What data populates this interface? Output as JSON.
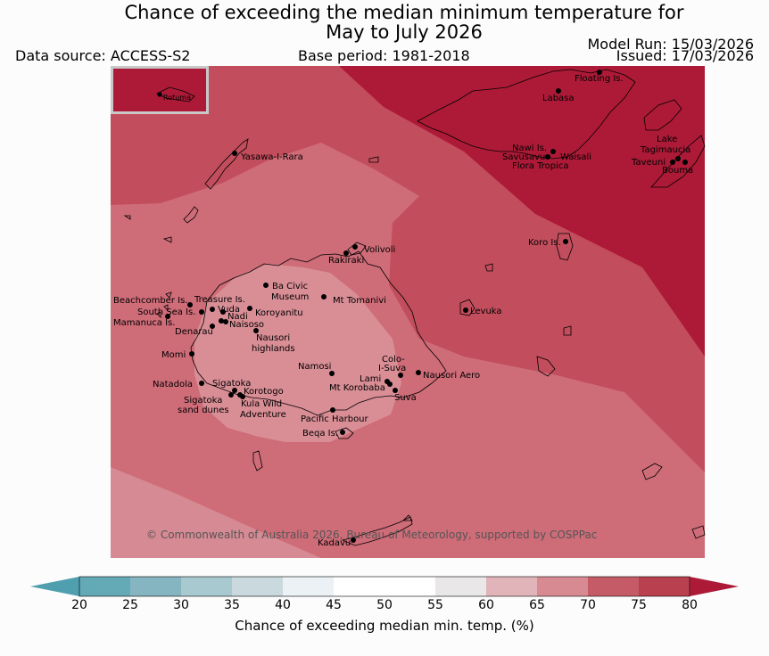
{
  "header": {
    "title_line1": "Chance of exceeding the median minimum temperature for",
    "title_line2": "May to July 2026",
    "data_source": "Data source: ACCESS-S2",
    "base_period": "Base period: 1981-2018",
    "model_run": "Model Run: 15/03/2026",
    "issued": "Issued: 17/03/2026"
  },
  "map": {
    "inset_label": "Rotuma",
    "places": [
      {
        "name": "Floating Is."
      },
      {
        "name": "Labasa"
      },
      {
        "name": "Yasawa-I-Rara"
      },
      {
        "name": "Nawi Is."
      },
      {
        "name": "Savusavu"
      },
      {
        "name": "Waisali"
      },
      {
        "name": "Flora Tropica"
      },
      {
        "name": "Lake"
      },
      {
        "name": "Tagimaucia"
      },
      {
        "name": "Taveuni"
      },
      {
        "name": "Bouma"
      },
      {
        "name": "Koro Is."
      },
      {
        "name": "Volivoli"
      },
      {
        "name": "Rakiraki"
      },
      {
        "name": "Ba Civic"
      },
      {
        "name": "Museum"
      },
      {
        "name": "Mt Tomanivi"
      },
      {
        "name": "Beachcomber Is."
      },
      {
        "name": "Treasure Is."
      },
      {
        "name": "South Sea Is."
      },
      {
        "name": "Vuda"
      },
      {
        "name": "Koroyanitu"
      },
      {
        "name": "Nadi"
      },
      {
        "name": "Mamanuca Is."
      },
      {
        "name": "Naisoso"
      },
      {
        "name": "Denarau"
      },
      {
        "name": "Nausori"
      },
      {
        "name": "highlands"
      },
      {
        "name": "Levuka"
      },
      {
        "name": "Momi"
      },
      {
        "name": "Colo-"
      },
      {
        "name": "I-Suva"
      },
      {
        "name": "Namosi"
      },
      {
        "name": "Nausori Aero"
      },
      {
        "name": "Lami"
      },
      {
        "name": "Natadola"
      },
      {
        "name": "Sigatoka"
      },
      {
        "name": "Mt Korobaba"
      },
      {
        "name": "Korotogo"
      },
      {
        "name": "Suva"
      },
      {
        "name": "Sigatoka"
      },
      {
        "name": "Kula Wild"
      },
      {
        "name": "sand dunes"
      },
      {
        "name": "Adventure"
      },
      {
        "name": "Pacific Harbour"
      },
      {
        "name": "Beqa Is."
      },
      {
        "name": "Kadavu"
      }
    ],
    "copyright": "© Commonwealth of Australia 2026, Bureau of Meteorology, supported by COSPPac"
  },
  "colorbar": {
    "label": "Chance of exceeding median min. temp. (%)",
    "ticks": [
      "20",
      "25",
      "30",
      "35",
      "40",
      "45",
      "50",
      "55",
      "60",
      "65",
      "70",
      "75",
      "80"
    ],
    "colors": [
      "#64a9b6",
      "#85b5c0",
      "#a7c9cf",
      "#c9d9de",
      "#ebf1f4",
      "#ffffff",
      "#ffffff",
      "#e9e7e8",
      "#e1b4b9",
      "#d78a92",
      "#c65b68",
      "#b9404f"
    ],
    "low_extend_color": "#4f9faf",
    "high_extend_color": "#ad1a37"
  }
}
